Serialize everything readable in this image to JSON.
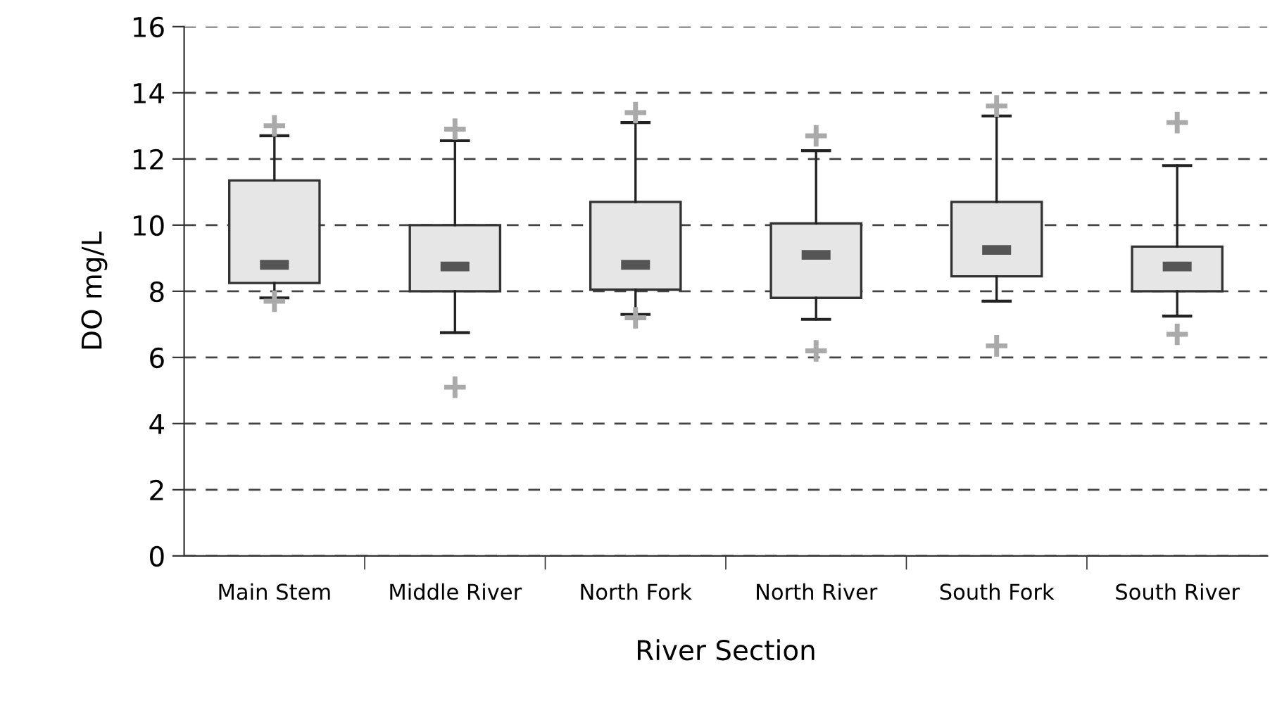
{
  "chart_data": {
    "type": "box",
    "xlabel": "River Section",
    "ylabel": "DO mg/L",
    "categories": [
      "Main Stem",
      "Middle River",
      "North Fork",
      "North River",
      "South Fork",
      "South River"
    ],
    "boxes": [
      {
        "low": 7.8,
        "q1": 8.25,
        "median": 8.8,
        "q3": 11.35,
        "high": 12.7,
        "outliers": [
          7.7,
          13.0
        ]
      },
      {
        "low": 6.75,
        "q1": 8.0,
        "median": 8.75,
        "q3": 10.0,
        "high": 12.55,
        "outliers": [
          5.1,
          12.9
        ]
      },
      {
        "low": 7.3,
        "q1": 8.05,
        "median": 8.8,
        "q3": 10.7,
        "high": 13.1,
        "outliers": [
          7.2,
          13.4
        ]
      },
      {
        "low": 7.15,
        "q1": 7.8,
        "median": 9.1,
        "q3": 10.05,
        "high": 12.25,
        "outliers": [
          6.2,
          12.7
        ]
      },
      {
        "low": 7.7,
        "q1": 8.45,
        "median": 9.25,
        "q3": 10.7,
        "high": 13.3,
        "outliers": [
          6.35,
          13.6
        ]
      },
      {
        "low": 7.25,
        "q1": 8.0,
        "median": 8.75,
        "q3": 9.35,
        "high": 11.8,
        "outliers": [
          6.7,
          13.1
        ]
      }
    ],
    "color": "#e6e6e6",
    "ylim": [
      0,
      16
    ],
    "yticks": [
      0,
      2,
      4,
      6,
      8,
      10,
      12,
      14,
      16
    ],
    "grid": "y",
    "line_style": "dashed",
    "marker": "cross"
  }
}
